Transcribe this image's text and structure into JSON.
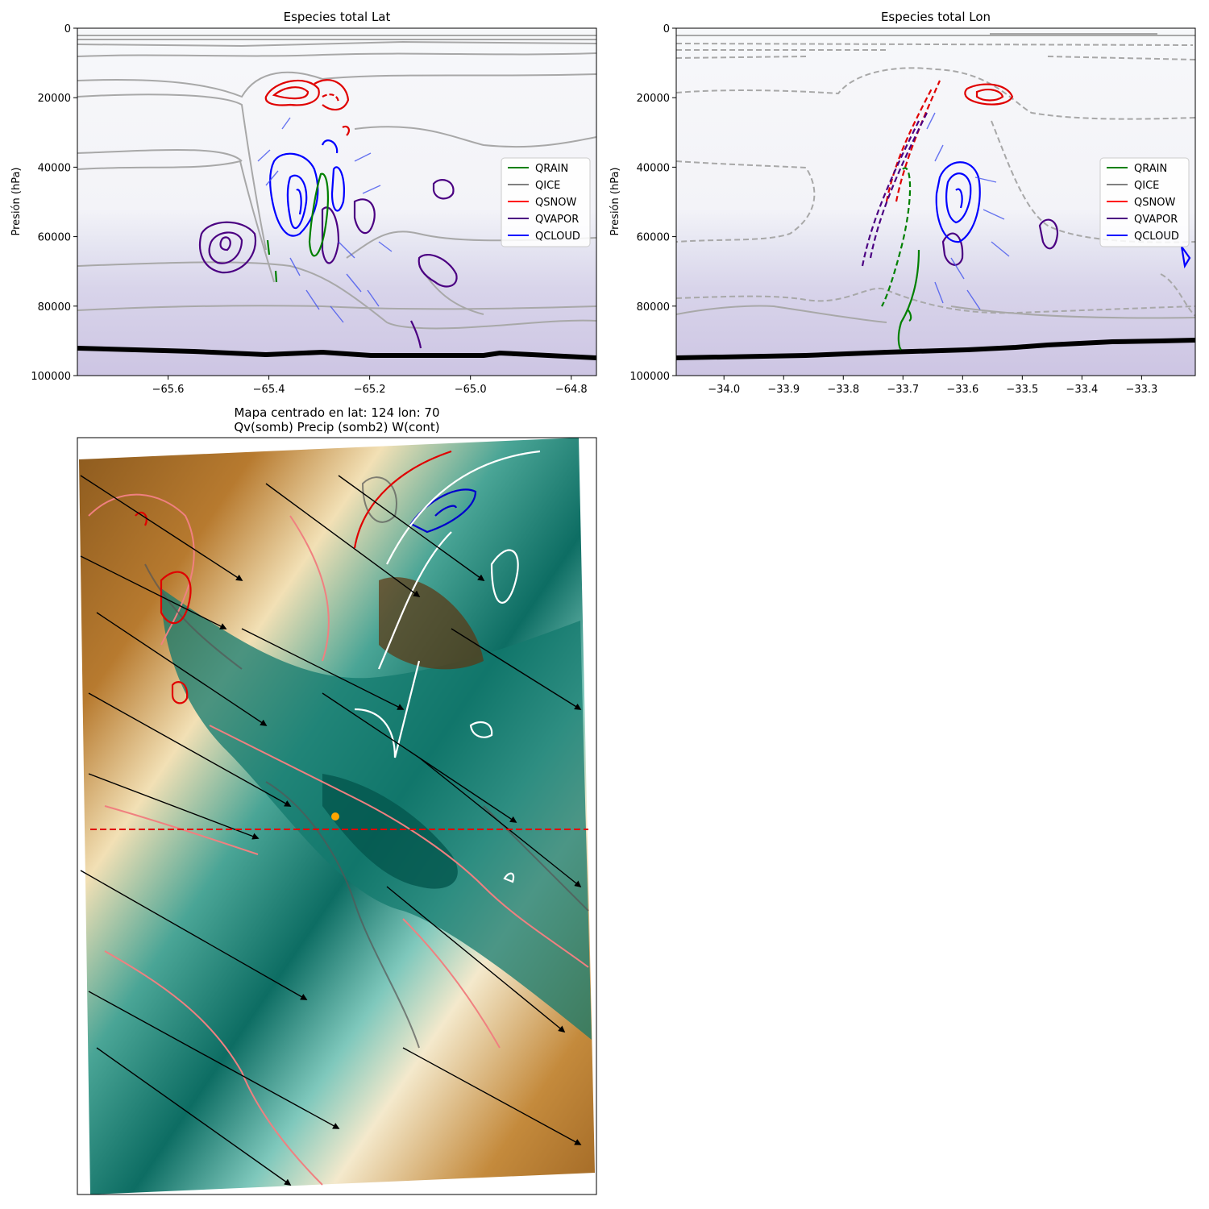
{
  "chart_data": [
    {
      "type": "contour",
      "title": "Especies total Lat",
      "ylabel": "Presión (hPa)",
      "xlabel": "",
      "xlim": [
        -65.78,
        -64.75
      ],
      "ylim": [
        100000,
        0
      ],
      "x_ticks": [
        -65.6,
        -65.4,
        -65.2,
        -65.0,
        -64.8
      ],
      "x_tick_labels": [
        "−65.6",
        "−65.4",
        "−65.2",
        "−65.0",
        "−64.8"
      ],
      "y_ticks": [
        0,
        20000,
        40000,
        60000,
        80000,
        100000
      ],
      "y_tick_labels": [
        "0",
        "20000",
        "40000",
        "60000",
        "80000",
        "100000"
      ],
      "legend": {
        "position": "right",
        "entries": [
          {
            "name": "QRAIN",
            "color": "#008000"
          },
          {
            "name": "QICE",
            "color": "#808080"
          },
          {
            "name": "QSNOW",
            "color": "#ff0000"
          },
          {
            "name": "QVAPOR",
            "color": "#4b0082"
          },
          {
            "name": "QCLOUD",
            "color": "#0000ff"
          }
        ]
      },
      "terrain_pressure": [
        [
          -65.78,
          92500
        ],
        [
          -65.6,
          93000
        ],
        [
          -65.4,
          93500
        ],
        [
          -65.3,
          93300
        ],
        [
          -65.2,
          93800
        ],
        [
          -65.0,
          94000
        ],
        [
          -64.95,
          93500
        ],
        [
          -64.9,
          94000
        ],
        [
          -64.75,
          94500
        ]
      ]
    },
    {
      "type": "contour",
      "title": "Especies total Lon",
      "ylabel": "Presión (hPa)",
      "xlabel": "",
      "xlim": [
        -34.08,
        -33.21
      ],
      "ylim": [
        100000,
        0
      ],
      "x_ticks": [
        -34.0,
        -33.9,
        -33.8,
        -33.7,
        -33.6,
        -33.5,
        -33.4,
        -33.3
      ],
      "x_tick_labels": [
        "−34.0",
        "−33.9",
        "−33.8",
        "−33.7",
        "−33.6",
        "−33.5",
        "−33.4",
        "−33.3"
      ],
      "y_ticks": [
        0,
        20000,
        40000,
        60000,
        80000,
        100000
      ],
      "y_tick_labels": [
        "0",
        "20000",
        "40000",
        "60000",
        "80000",
        "100000"
      ],
      "legend": {
        "position": "right",
        "entries": [
          {
            "name": "QRAIN",
            "color": "#008000"
          },
          {
            "name": "QICE",
            "color": "#808080"
          },
          {
            "name": "QSNOW",
            "color": "#ff0000"
          },
          {
            "name": "QVAPOR",
            "color": "#4b0082"
          },
          {
            "name": "QCLOUD",
            "color": "#0000ff"
          }
        ]
      },
      "terrain_pressure": [
        [
          -34.08,
          94000
        ],
        [
          -33.9,
          93800
        ],
        [
          -33.7,
          93300
        ],
        [
          -33.6,
          92800
        ],
        [
          -33.5,
          91800
        ],
        [
          -33.4,
          90000
        ],
        [
          -33.3,
          89500
        ],
        [
          -33.21,
          89300
        ]
      ]
    },
    {
      "type": "map",
      "title_lines": [
        "Mapa centrado en lat: 124 lon: 70",
        "Qv(somb) Precip (somb2) W(cont)"
      ],
      "cross_section_line": "horizontal, red dashed",
      "center_marker_color": "#ffa500",
      "colormap": "BrBG"
    }
  ]
}
